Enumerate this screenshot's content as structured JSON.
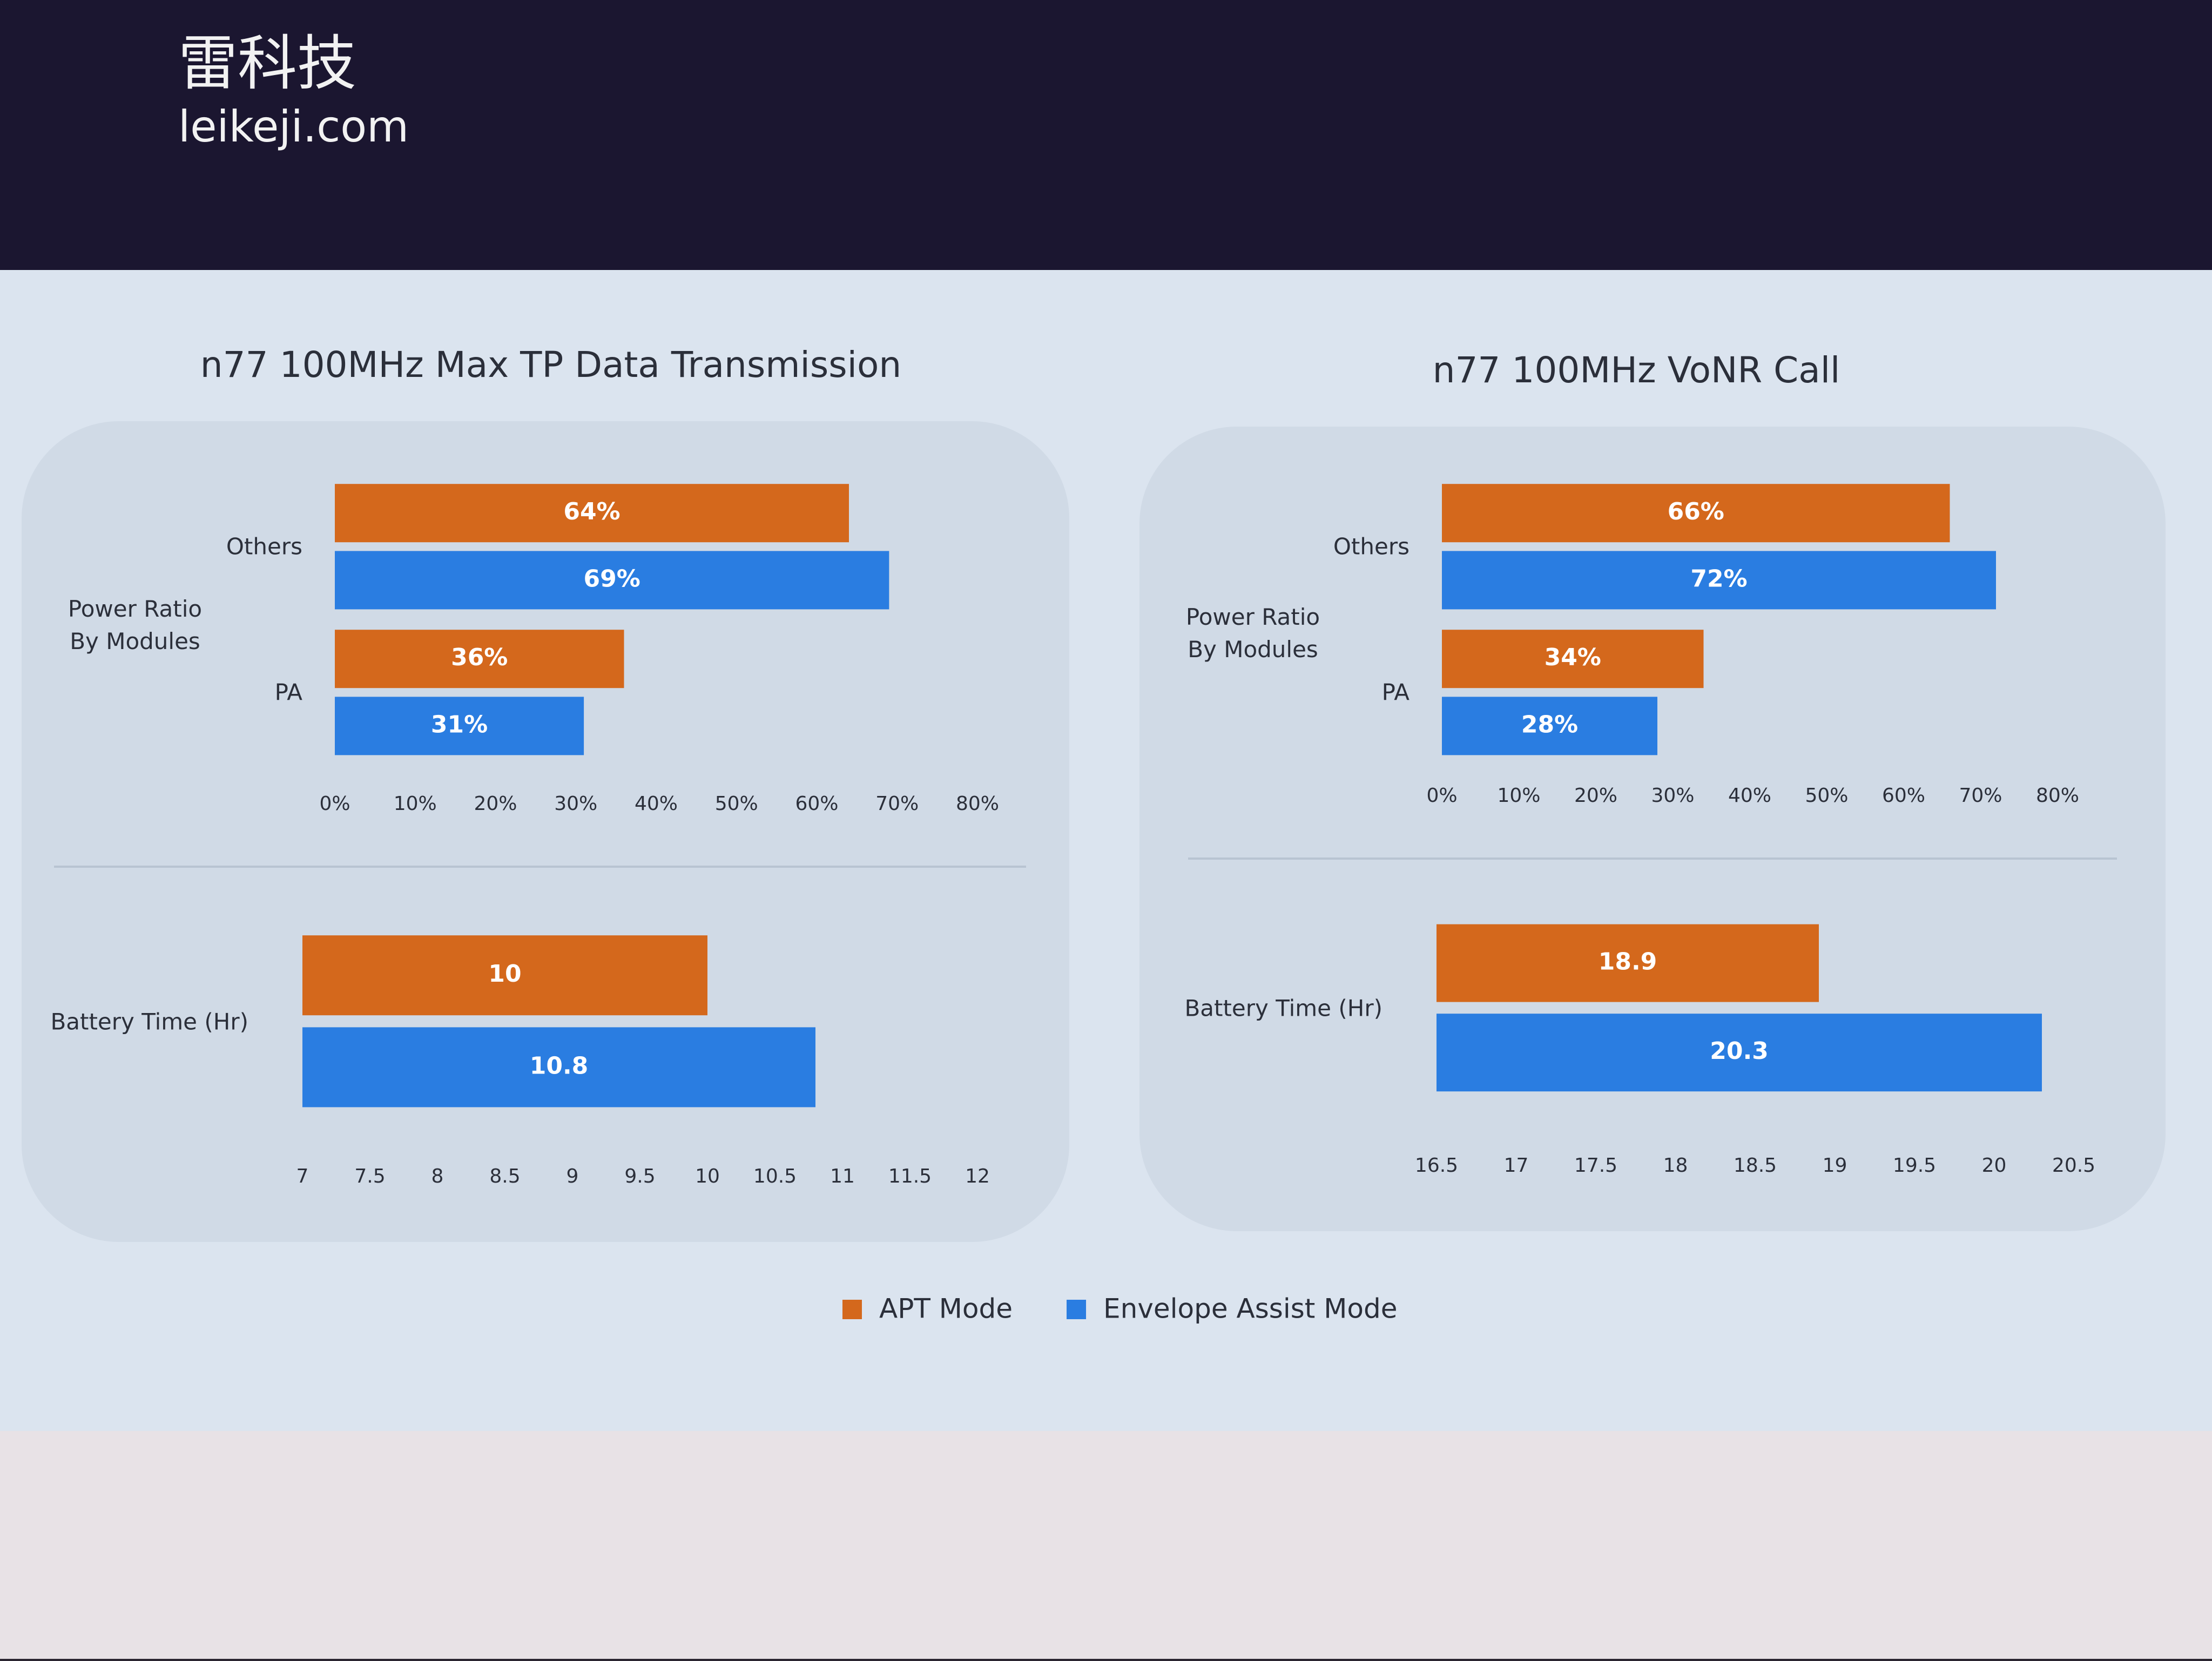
{
  "watermark": {
    "brand": "雷科技",
    "site": "leikeji.com"
  },
  "chart_data": [
    {
      "type": "hbar",
      "title": "n77 100MHz Max TP Data Transmission",
      "y_label": "Power Ratio\nBy Modules",
      "categories": [
        "Others",
        "PA"
      ],
      "series": [
        {
          "name": "APT Mode",
          "color": "#d4681c",
          "values": [
            64,
            36
          ],
          "value_labels": [
            "64%",
            "36%"
          ]
        },
        {
          "name": "Envelope Assist Mode",
          "color": "#2a7de1",
          "values": [
            69,
            31
          ],
          "value_labels": [
            "69%",
            "31%"
          ]
        }
      ],
      "xlim": [
        0,
        80
      ],
      "xticks": [
        {
          "value": 0,
          "label": "0%"
        },
        {
          "value": 10,
          "label": "10%"
        },
        {
          "value": 20,
          "label": "20%"
        },
        {
          "value": 30,
          "label": "30%"
        },
        {
          "value": 40,
          "label": "40%"
        },
        {
          "value": 50,
          "label": "50%"
        },
        {
          "value": 60,
          "label": "60%"
        },
        {
          "value": 70,
          "label": "70%"
        },
        {
          "value": 80,
          "label": "80%"
        }
      ]
    },
    {
      "type": "hbar",
      "categories": [
        "Battery Time (Hr)"
      ],
      "series": [
        {
          "name": "APT Mode",
          "color": "#d4681c",
          "values": [
            10
          ]
        },
        {
          "name": "Envelope Assist Mode",
          "color": "#2a7de1",
          "values": [
            10.8
          ]
        }
      ],
      "xlim": [
        7,
        12
      ],
      "xticks": [
        7,
        7.5,
        8,
        8.5,
        9,
        9.5,
        10,
        10.5,
        11,
        11.5,
        12
      ]
    },
    {
      "type": "hbar",
      "title": "n77 100MHz VoNR Call",
      "y_label": "Power Ratio\nBy Modules",
      "categories": [
        "Others",
        "PA"
      ],
      "series": [
        {
          "name": "APT Mode",
          "color": "#d4681c",
          "values": [
            66,
            34
          ],
          "value_labels": [
            "66%",
            "34%"
          ]
        },
        {
          "name": "Envelope Assist Mode",
          "color": "#2a7de1",
          "values": [
            72,
            28
          ],
          "value_labels": [
            "72%",
            "28%"
          ]
        }
      ],
      "xlim": [
        0,
        80
      ],
      "xticks": [
        {
          "value": 0,
          "label": "0%"
        },
        {
          "value": 10,
          "label": "10%"
        },
        {
          "value": 20,
          "label": "20%"
        },
        {
          "value": 30,
          "label": "30%"
        },
        {
          "value": 40,
          "label": "40%"
        },
        {
          "value": 50,
          "label": "50%"
        },
        {
          "value": 60,
          "label": "60%"
        },
        {
          "value": 70,
          "label": "70%"
        },
        {
          "value": 80,
          "label": "80%"
        }
      ]
    },
    {
      "type": "hbar",
      "categories": [
        "Battery Time (Hr)"
      ],
      "series": [
        {
          "name": "APT Mode",
          "color": "#d4681c",
          "values": [
            18.9
          ]
        },
        {
          "name": "Envelope Assist Mode",
          "color": "#2a7de1",
          "values": [
            20.3
          ]
        }
      ],
      "xlim": [
        16.5,
        20.5
      ],
      "xticks": [
        16.5,
        17,
        17.5,
        18,
        18.5,
        19,
        19.5,
        20,
        20.5
      ]
    }
  ]
}
